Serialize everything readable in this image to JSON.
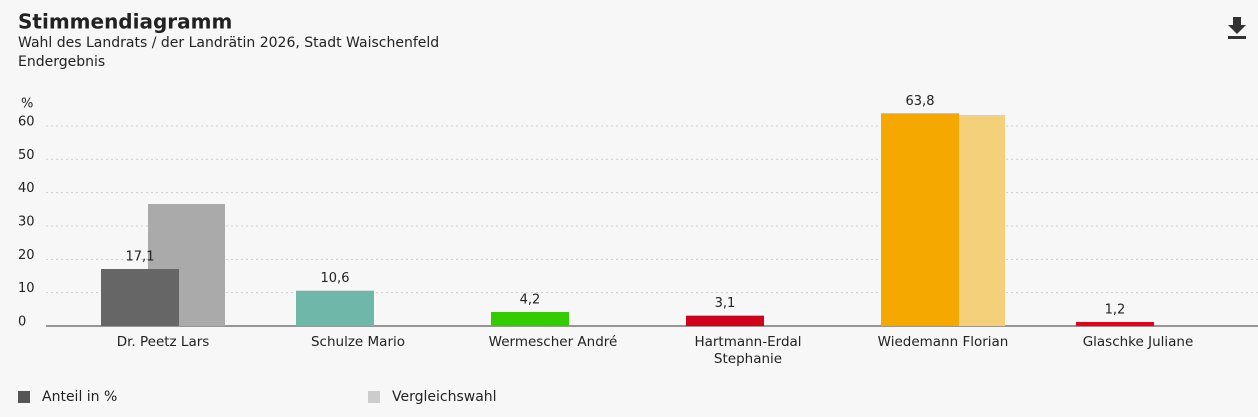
{
  "chart_data": {
    "type": "bar",
    "title": "Stimmendiagramm",
    "subtitle": "Wahl des Landrats / der Landrätin 2026, Stadt Waischenfeld",
    "note": "Endergebnis",
    "y_label": "%",
    "categories": [
      "Dr. Peetz Lars",
      "Schulze Mario",
      "Wermescher André",
      "Hartmann-Erdal Stephanie",
      "Wiedemann Florian",
      "Glaschke Juliane"
    ],
    "series": [
      {
        "name": "Anteil in %",
        "color": "#555555",
        "colors": [
          "#666666",
          "#6fb7a8",
          "#33cc00",
          "#d0021b",
          "#f5a800",
          "#e3001b"
        ],
        "values": [
          17.1,
          10.6,
          4.2,
          3.1,
          63.8,
          1.2
        ],
        "value_labels": [
          "17,1",
          "10,6",
          "4,2",
          "3,1",
          "63,8",
          "1,2"
        ]
      },
      {
        "name": "Vergleichswahl",
        "color": "#cccccc",
        "colors": [
          "#aaaaaa",
          null,
          null,
          null,
          "#f5d07a",
          null
        ],
        "values": [
          36.6,
          null,
          null,
          null,
          63.3,
          null
        ]
      }
    ],
    "ylim": [
      0,
      65
    ],
    "yticks": [
      0,
      10,
      20,
      30,
      40,
      50,
      60
    ],
    "grid": true
  }
}
